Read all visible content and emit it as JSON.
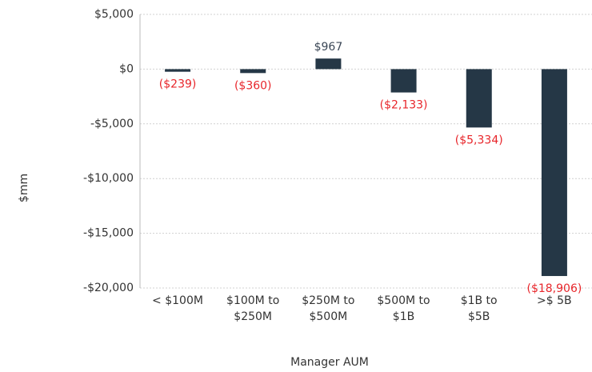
{
  "chart_data": {
    "type": "bar",
    "categories": [
      "< $100M",
      "$100M to\n$250M",
      "$250M to\n$500M",
      "$500M to\n$1B",
      "$1B to\n$5B",
      ">$ 5B"
    ],
    "values": [
      -239,
      -360,
      967,
      -2133,
      -5334,
      -18906
    ],
    "value_labels": [
      "($239)",
      "($360)",
      "$967",
      "($2,133)",
      "($5,334)",
      "($18,906)"
    ],
    "color": "#253746",
    "positive_label_color": "#3b4756",
    "negative_label_color": "#e8262b",
    "ylim": [
      -20000,
      5000
    ],
    "yticks": [
      {
        "value": -20000,
        "label": "-$20,000"
      },
      {
        "value": -15000,
        "label": "-$15,000"
      },
      {
        "value": -10000,
        "label": "-$10,000"
      },
      {
        "value": -5000,
        "label": "-$5,000"
      },
      {
        "value": 0,
        "label": "$0"
      },
      {
        "value": 5000,
        "label": "$5,000"
      }
    ],
    "ylabel": "$mm",
    "xlabel": "Manager AUM",
    "grid": true
  }
}
